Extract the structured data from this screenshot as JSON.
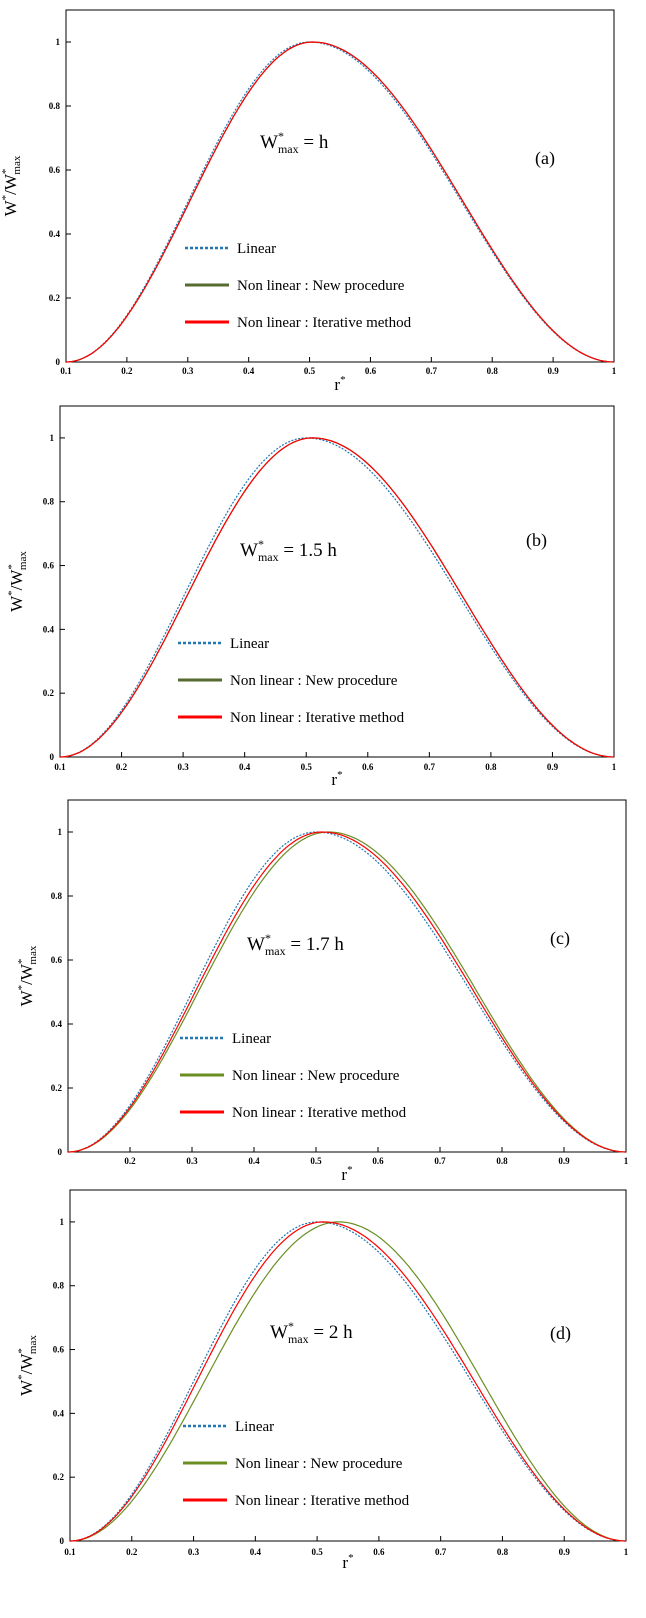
{
  "chart_data": [
    {
      "type": "line",
      "panel_label": "(a)",
      "annotation": {
        "lhs": "W",
        "sup": "*",
        "sub": "max",
        "rhs": " = h"
      },
      "xlabel": {
        "base": "r",
        "sup": "*"
      },
      "ylabel": {
        "num": "W",
        "num_sup": "*",
        "den": "W",
        "den_sup": "*",
        "den_sub": "max"
      },
      "xlim": [
        0.1,
        1.0
      ],
      "ylim": [
        0,
        1.1
      ],
      "xticks": [
        "0.1",
        "0.2",
        "0.3",
        "0.4",
        "0.5",
        "0.6",
        "0.7",
        "0.8",
        "0.9",
        "1"
      ],
      "yticks": [
        "0",
        "0.2",
        "0.4",
        "0.6",
        "0.8",
        "1"
      ],
      "legend": {
        "position": "center-left"
      },
      "series": [
        {
          "name": "Linear",
          "color": "#1f77b4",
          "style": "dotted",
          "peak": 0.5,
          "x": [
            0.1,
            0.2,
            0.3,
            0.4,
            0.5,
            0.6,
            0.7,
            0.8,
            0.9,
            1.0
          ],
          "y": [
            0,
            0.19,
            0.6,
            0.92,
            1.0,
            0.88,
            0.6,
            0.29,
            0.06,
            0
          ]
        },
        {
          "name": "Non linear : New procedure",
          "color": "#556b2f",
          "style": "solid",
          "peak": 0.505,
          "x": [
            0.1,
            0.2,
            0.3,
            0.4,
            0.5,
            0.6,
            0.7,
            0.8,
            0.9,
            1.0
          ],
          "y": [
            0,
            0.2,
            0.6,
            0.92,
            1.0,
            0.9,
            0.62,
            0.3,
            0.07,
            0
          ]
        },
        {
          "name": "Non linear : Iterative method",
          "color": "#ff0000",
          "style": "solid",
          "peak": 0.505,
          "x": [
            0.1,
            0.2,
            0.3,
            0.4,
            0.5,
            0.6,
            0.7,
            0.8,
            0.9,
            1.0
          ],
          "y": [
            0,
            0.2,
            0.6,
            0.92,
            1.0,
            0.9,
            0.62,
            0.3,
            0.07,
            0
          ]
        }
      ]
    },
    {
      "type": "line",
      "panel_label": "(b)",
      "annotation": {
        "lhs": "W",
        "sup": "*",
        "sub": "max",
        "rhs": " = 1.5 h"
      },
      "xlabel": {
        "base": "r",
        "sup": "*"
      },
      "ylabel": {
        "num": "W",
        "num_sup": "*",
        "den": "W",
        "den_sup": "*",
        "den_sub": "max"
      },
      "xlim": [
        0.1,
        1.0
      ],
      "ylim": [
        0,
        1.1
      ],
      "xticks": [
        "0.1",
        "0.2",
        "0.3",
        "0.4",
        "0.5",
        "0.6",
        "0.7",
        "0.8",
        "0.9",
        "1"
      ],
      "yticks": [
        "0",
        "0.2",
        "0.4",
        "0.6",
        "0.8",
        "1"
      ],
      "legend": {
        "position": "center-left"
      },
      "series": [
        {
          "name": "Linear",
          "color": "#1f77b4",
          "style": "dotted",
          "peak": 0.5,
          "x": [
            0.1,
            0.2,
            0.3,
            0.4,
            0.5,
            0.6,
            0.7,
            0.8,
            0.9,
            1.0
          ],
          "y": [
            0,
            0.2,
            0.6,
            0.93,
            1.0,
            0.88,
            0.6,
            0.28,
            0.06,
            0
          ]
        },
        {
          "name": "Non linear : New procedure",
          "color": "#556b2f",
          "style": "solid",
          "peak": 0.51,
          "x": [
            0.1,
            0.2,
            0.3,
            0.4,
            0.5,
            0.6,
            0.7,
            0.8,
            0.9,
            1.0
          ],
          "y": [
            0,
            0.22,
            0.6,
            0.91,
            1.0,
            0.9,
            0.64,
            0.32,
            0.08,
            0
          ]
        },
        {
          "name": "Non linear : Iterative method",
          "color": "#ff0000",
          "style": "solid",
          "peak": 0.51,
          "x": [
            0.1,
            0.2,
            0.3,
            0.4,
            0.5,
            0.6,
            0.7,
            0.8,
            0.9,
            1.0
          ],
          "y": [
            0,
            0.22,
            0.6,
            0.91,
            1.0,
            0.9,
            0.64,
            0.32,
            0.08,
            0
          ]
        }
      ]
    },
    {
      "type": "line",
      "panel_label": "(c)",
      "annotation": {
        "lhs": "W",
        "sup": "*",
        "sub": "max",
        "rhs": " = 1.7 h"
      },
      "xlabel": {
        "base": "r",
        "sup": "*"
      },
      "ylabel": {
        "num": "W",
        "num_sup": "*",
        "den": "W",
        "den_sup": "*",
        "den_sub": "max"
      },
      "xlim": [
        0.1,
        1.0
      ],
      "ylim": [
        0,
        1.1
      ],
      "xticks": [
        "",
        "0.2",
        "0.3",
        "0.4",
        "0.5",
        "0.6",
        "0.7",
        "0.8",
        "0.9",
        "1"
      ],
      "yticks": [
        "0",
        "0.2",
        "0.4",
        "0.6",
        "0.8",
        "1"
      ],
      "legend": {
        "position": "center-left"
      },
      "series": [
        {
          "name": "Linear",
          "color": "#1f77b4",
          "style": "dotted",
          "peak": 0.5,
          "x": [
            0.1,
            0.2,
            0.3,
            0.4,
            0.5,
            0.6,
            0.7,
            0.8,
            0.9,
            1.0
          ],
          "y": [
            0,
            0.2,
            0.6,
            0.93,
            1.0,
            0.87,
            0.6,
            0.28,
            0.06,
            0
          ]
        },
        {
          "name": "Non linear : New procedure",
          "color": "#6b8e23",
          "style": "solid",
          "peak": 0.52,
          "x": [
            0.1,
            0.2,
            0.3,
            0.4,
            0.5,
            0.6,
            0.7,
            0.8,
            0.9,
            1.0
          ],
          "y": [
            0,
            0.2,
            0.55,
            0.88,
            1.0,
            0.92,
            0.68,
            0.36,
            0.1,
            0
          ]
        },
        {
          "name": "Non linear : Iterative method",
          "color": "#ff0000",
          "style": "solid",
          "peak": 0.51,
          "x": [
            0.1,
            0.2,
            0.3,
            0.4,
            0.5,
            0.6,
            0.7,
            0.8,
            0.9,
            1.0
          ],
          "y": [
            0,
            0.22,
            0.6,
            0.91,
            1.0,
            0.9,
            0.65,
            0.33,
            0.08,
            0
          ]
        }
      ]
    },
    {
      "type": "line",
      "panel_label": "(d)",
      "annotation": {
        "lhs": "W",
        "sup": "*",
        "sub": "max",
        "rhs": " = 2 h"
      },
      "xlabel": {
        "base": "r",
        "sup": "*"
      },
      "ylabel": {
        "num": "W",
        "num_sup": "*",
        "den": "W",
        "den_sup": "*",
        "den_sub": "max"
      },
      "xlim": [
        0.1,
        1.0
      ],
      "ylim": [
        0,
        1.1
      ],
      "xticks": [
        "0.1",
        "0.2",
        "0.3",
        "0.4",
        "0.5",
        "0.6",
        "0.7",
        "0.8",
        "0.9",
        "1"
      ],
      "yticks": [
        "0",
        "0.2",
        "0.4",
        "0.6",
        "0.8",
        "1"
      ],
      "legend": {
        "position": "center-left"
      },
      "series": [
        {
          "name": "Linear",
          "color": "#1f77b4",
          "style": "dotted",
          "peak": 0.5,
          "x": [
            0.1,
            0.2,
            0.3,
            0.4,
            0.5,
            0.6,
            0.7,
            0.8,
            0.9,
            1.0
          ],
          "y": [
            0,
            0.2,
            0.6,
            0.94,
            1.0,
            0.85,
            0.6,
            0.28,
            0.06,
            0
          ]
        },
        {
          "name": "Non linear : New procedure",
          "color": "#6b8e23",
          "style": "solid",
          "peak": 0.535,
          "x": [
            0.1,
            0.2,
            0.3,
            0.4,
            0.5,
            0.6,
            0.7,
            0.8,
            0.9,
            1.0
          ],
          "y": [
            0,
            0.15,
            0.45,
            0.79,
            0.98,
            0.96,
            0.75,
            0.42,
            0.13,
            0
          ]
        },
        {
          "name": "Non linear : Iterative method",
          "color": "#ff0000",
          "style": "solid",
          "peak": 0.51,
          "x": [
            0.1,
            0.2,
            0.3,
            0.4,
            0.5,
            0.6,
            0.7,
            0.8,
            0.9,
            1.0
          ],
          "y": [
            0,
            0.22,
            0.62,
            0.92,
            1.0,
            0.88,
            0.62,
            0.3,
            0.07,
            0
          ]
        }
      ]
    }
  ]
}
